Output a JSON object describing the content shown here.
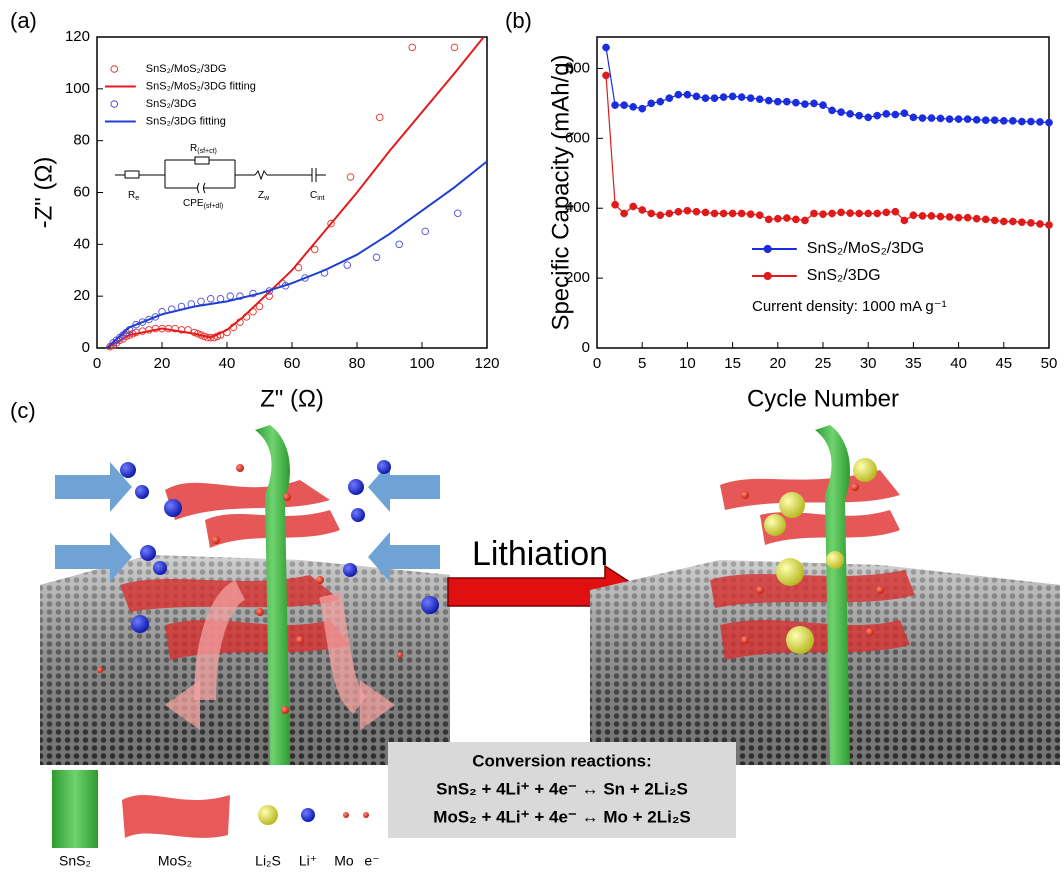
{
  "panel_labels": [
    "(a)",
    "(b)",
    "(c)"
  ],
  "chart_data": [
    {
      "type": "scatter",
      "xlabel": "Z\" (Ω)",
      "ylabel": "-Z\" (Ω)",
      "xlim": [
        0,
        120
      ],
      "xticks": [
        0,
        20,
        40,
        60,
        80,
        100,
        120
      ],
      "ylim": [
        0,
        120
      ],
      "yticks": [
        0,
        20,
        40,
        60,
        80,
        100,
        120
      ],
      "legend": "upper left",
      "series": [
        {
          "name": "SnS₂/MoS₂/3DG",
          "color": "#e8332a",
          "marker": "open",
          "line": false,
          "x": [
            4,
            5,
            6,
            7,
            8,
            9,
            10,
            11,
            12,
            14,
            16,
            18,
            20,
            22,
            24,
            26,
            28,
            30,
            31,
            32,
            33,
            34,
            35,
            36,
            37,
            38,
            40,
            42,
            44,
            46,
            48,
            50,
            53,
            57,
            62,
            67,
            72,
            78,
            87,
            97,
            110
          ],
          "values": [
            0.5,
            1,
            2,
            3,
            3.5,
            4.5,
            5,
            5.5,
            6,
            6.5,
            7,
            7.5,
            7.5,
            7.5,
            7.5,
            7,
            7,
            6,
            5.5,
            5,
            4.5,
            4,
            4,
            4,
            4.5,
            5,
            6,
            8,
            10,
            12,
            14,
            16,
            20,
            25,
            31,
            38,
            48,
            66,
            89,
            116,
            116
          ]
        },
        {
          "name": "SnS₂/MoS₂/3DG fitting",
          "color": "#e41a1c",
          "marker": "none",
          "line": true,
          "x": [
            3,
            10,
            20,
            30,
            35,
            40,
            45,
            50,
            55,
            60,
            70,
            80,
            90,
            100,
            110,
            119
          ],
          "values": [
            0,
            5,
            7.5,
            5.5,
            4,
            7,
            12,
            18,
            24,
            30,
            45,
            60,
            76,
            91,
            106,
            120
          ]
        },
        {
          "name": "SnS₂/3DG",
          "color": "#5050d8",
          "marker": "open",
          "line": false,
          "x": [
            5,
            6,
            7,
            8,
            9,
            10,
            12,
            14,
            16,
            18,
            20,
            23,
            26,
            29,
            32,
            35,
            38,
            41,
            44,
            48,
            53,
            58,
            64,
            70,
            77,
            86,
            93,
            101,
            111
          ],
          "values": [
            2,
            3,
            4,
            5,
            6,
            7,
            9,
            10,
            11,
            12,
            14,
            15,
            16,
            17,
            18,
            19,
            19,
            20,
            20,
            21,
            22,
            24,
            27,
            29,
            32,
            35,
            40,
            45,
            52
          ]
        },
        {
          "name": "SnS₂/3DG fitting",
          "color": "#1f3fd0",
          "marker": "none",
          "line": true,
          "x": [
            3,
            10,
            20,
            30,
            40,
            50,
            60,
            70,
            80,
            90,
            100,
            110,
            120
          ],
          "values": [
            0,
            8,
            13,
            16,
            18,
            21,
            25,
            30,
            36,
            44,
            53,
            62,
            72
          ]
        }
      ],
      "circuit": [
        {
          "text": "R",
          "sub": "e"
        },
        {
          "text": "R",
          "sub": "(sf+ct)"
        },
        {
          "text": "CPE",
          "sub": "(sf+dl)"
        },
        {
          "text": "Z",
          "sub": "w"
        },
        {
          "text": "C",
          "sub": "int"
        }
      ]
    },
    {
      "type": "line",
      "xlabel": "Cycle Number",
      "ylabel": "Specific Capacity (mAh/g)",
      "xlim": [
        0,
        50
      ],
      "xticks": [
        0,
        5,
        10,
        15,
        20,
        25,
        30,
        35,
        40,
        45,
        50
      ],
      "ylim": [
        0,
        890
      ],
      "yticks": [
        0,
        200,
        400,
        600,
        800
      ],
      "legend": "center right",
      "note": "Current density: 1000 mA g⁻¹",
      "x": [
        1,
        2,
        3,
        4,
        5,
        6,
        7,
        8,
        9,
        10,
        11,
        12,
        13,
        14,
        15,
        16,
        17,
        18,
        19,
        20,
        21,
        22,
        23,
        24,
        25,
        26,
        27,
        28,
        29,
        30,
        31,
        32,
        33,
        34,
        35,
        36,
        37,
        38,
        39,
        40,
        41,
        42,
        43,
        44,
        45,
        46,
        47,
        48,
        49,
        50
      ],
      "series": [
        {
          "name": "SnS₂/MoS₂/3DG",
          "color": "#1a2ee0",
          "marker": "filled",
          "line": true,
          "values": [
            860,
            695,
            695,
            690,
            685,
            700,
            705,
            715,
            725,
            725,
            720,
            715,
            715,
            718,
            720,
            718,
            715,
            712,
            708,
            705,
            705,
            702,
            698,
            700,
            695,
            680,
            675,
            670,
            665,
            660,
            665,
            670,
            668,
            672,
            660,
            658,
            658,
            657,
            655,
            655,
            655,
            653,
            652,
            652,
            650,
            650,
            648,
            648,
            647,
            645
          ]
        },
        {
          "name": "SnS₂/3DG",
          "color": "#e01a1a",
          "marker": "filled",
          "line": true,
          "values": [
            780,
            410,
            385,
            405,
            395,
            385,
            380,
            385,
            390,
            393,
            390,
            388,
            385,
            385,
            385,
            385,
            383,
            380,
            368,
            370,
            372,
            368,
            365,
            385,
            383,
            385,
            388,
            386,
            385,
            385,
            385,
            388,
            390,
            365,
            380,
            378,
            378,
            376,
            375,
            373,
            373,
            370,
            368,
            365,
            362,
            362,
            360,
            358,
            355,
            352
          ]
        }
      ]
    }
  ],
  "schematic": {
    "arrow_label": "Lithiation",
    "reaction_title": "Conversion reactions:",
    "reactions": [
      "SnS₂ + 4Li⁺ + 4e⁻ ↔ Sn + 2Li₂S",
      "MoS₂ + 4Li⁺ + 4e⁻ ↔ Mo + 2Li₂S"
    ],
    "legend": [
      "SnS₂",
      "MoS₂",
      "Li₂S",
      "Li⁺",
      "Mo",
      "e⁻"
    ]
  }
}
